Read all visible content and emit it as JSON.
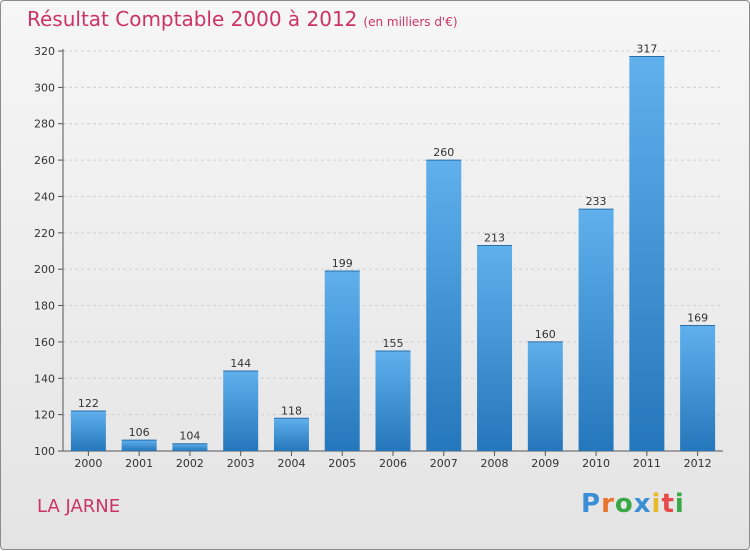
{
  "header": {
    "title": "Résultat Comptable 2000 à 2012",
    "subtitle": "(en milliers d'€)"
  },
  "footer": {
    "commune": "LA JARNE",
    "logo_letters": [
      "P",
      "r",
      "o",
      "x",
      "i",
      "t",
      "i"
    ],
    "logo_colors": [
      "#3b8fd6",
      "#e8732a",
      "#39a845",
      "#3b8fd6",
      "#e8b92a",
      "#e84a4a",
      "#39a845"
    ]
  },
  "colors": {
    "bar_top": "#5fb0ec",
    "bar_bottom": "#2577bb",
    "grid": "#cfcfcf",
    "title": "#cc3366"
  },
  "chart_data": {
    "type": "bar",
    "title": "Résultat Comptable 2000 à 2012",
    "subtitle": "(en milliers d'€)",
    "xlabel": "",
    "ylabel": "",
    "categories": [
      "2000",
      "2001",
      "2002",
      "2003",
      "2004",
      "2005",
      "2006",
      "2007",
      "2008",
      "2009",
      "2010",
      "2011",
      "2012"
    ],
    "values": [
      122,
      106,
      104,
      144,
      118,
      199,
      155,
      260,
      213,
      160,
      233,
      317,
      169
    ],
    "ylim": [
      100,
      320
    ],
    "yticks": [
      100,
      120,
      140,
      160,
      180,
      200,
      220,
      240,
      260,
      280,
      300,
      320
    ],
    "grid": true
  }
}
